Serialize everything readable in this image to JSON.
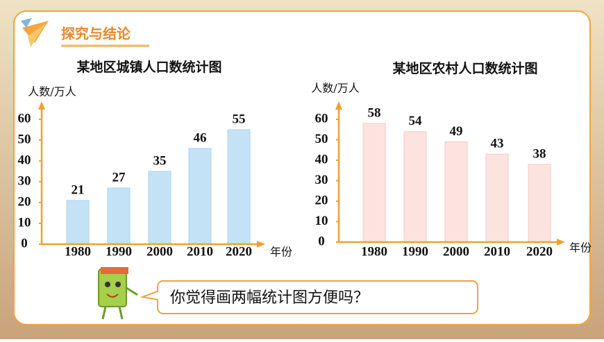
{
  "header": {
    "title": "探究与结论"
  },
  "chart_data": [
    {
      "type": "bar",
      "title": "某地区城镇人口数统计图",
      "y_label": "人数/万人",
      "x_label": "年份",
      "categories": [
        "1980",
        "1990",
        "2000",
        "2010",
        "2020"
      ],
      "values": [
        21,
        27,
        35,
        46,
        55
      ],
      "color": "#c4e2f6",
      "ylim": [
        0,
        60
      ],
      "yticks": [
        0,
        10,
        20,
        30,
        40,
        50,
        60
      ],
      "grid": false
    },
    {
      "type": "bar",
      "title": "某地区农村人口数统计图",
      "y_label": "人数/万人",
      "x_label": "年份",
      "categories": [
        "1980",
        "1990",
        "2000",
        "2010",
        "2020"
      ],
      "values": [
        58,
        54,
        49,
        43,
        38
      ],
      "color": "#fde3df",
      "ylim": [
        0,
        60
      ],
      "yticks": [
        0,
        10,
        20,
        30,
        40,
        50,
        60
      ],
      "grid": false
    }
  ],
  "speech": {
    "text": "你觉得画两幅统计图方便吗？"
  }
}
